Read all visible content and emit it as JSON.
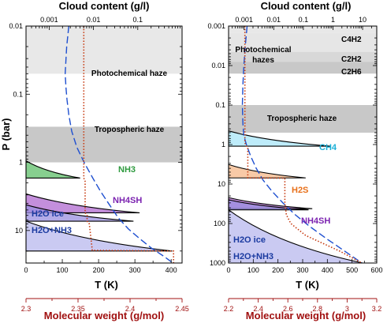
{
  "chart_data": [
    {
      "type": "line",
      "panel": "left",
      "top_axis": {
        "label": "Cloud content (g/l)",
        "log": true,
        "range": [
          0.0003,
          1
        ],
        "ticks": [
          0.001,
          0.01,
          0.1
        ],
        "tick_labels": [
          "0.001",
          "0.01",
          "0.1"
        ]
      },
      "y_axis": {
        "label": "P (bar)",
        "log": true,
        "inverted": true,
        "range": [
          0.01,
          30
        ],
        "ticks": [
          0.01,
          0.1,
          1,
          10
        ],
        "tick_labels": [
          "0.01",
          "0.1",
          "1",
          "10"
        ]
      },
      "x_axis": {
        "label": "T (K)",
        "range": [
          0,
          430
        ],
        "ticks": [
          0,
          100,
          200,
          300,
          400
        ],
        "tick_labels": [
          "0",
          "100",
          "200",
          "300",
          "400"
        ]
      },
      "bottom_axis": {
        "label": "Molecular weight (g/mol)",
        "range": [
          2.3,
          2.45
        ],
        "ticks": [
          2.3,
          2.35,
          2.4,
          2.45
        ],
        "tick_labels": [
          "2.3",
          "2.35",
          "2.4",
          "2.45"
        ]
      },
      "haze_bands": [
        {
          "label": "Photochemical haze",
          "p_top": 0.01,
          "p_bottom": 0.05,
          "color": "#e8e8e8"
        },
        {
          "label": "Tropospheric haze",
          "p_top": 0.3,
          "p_bottom": 1.0,
          "color": "#c8c8c8"
        }
      ],
      "clouds": [
        {
          "label": "NH3",
          "base_p": 1.7,
          "top_p": 0.95,
          "max_content": 0.005,
          "fill": "#5fbf6a",
          "label_color": "#2e9a3e"
        },
        {
          "label": "NH4SH",
          "base_p": 5.5,
          "top_p": 2.9,
          "max_content": 0.11,
          "fill": "#b06ad0",
          "label_color": "#7b22b0"
        },
        {
          "label": "H2O ice",
          "base_p": 7.3,
          "top_p": 4.2,
          "max_content": 0.08,
          "fill": "#9a8fe0",
          "label_color": "#1a3aa0"
        },
        {
          "label": "H2O+NH3",
          "base_p": 20,
          "top_p": 7.3,
          "max_content": 0.6,
          "fill": "#b8b8ee",
          "label_color": "#1a3aa0"
        }
      ],
      "temperature_profile": {
        "color": "#1e4fd0",
        "dash": "long",
        "T": [
          118,
          112,
          108,
          110,
          113,
          118,
          126,
          140,
          160,
          184,
          206,
          230,
          254,
          282,
          312,
          345,
          380,
          405
        ],
        "P": [
          0.01,
          0.02,
          0.05,
          0.08,
          0.12,
          0.2,
          0.35,
          0.6,
          1.0,
          1.7,
          2.7,
          4.2,
          6.5,
          9.5,
          13,
          18,
          24,
          30
        ]
      },
      "molecular_weight_profile": {
        "color": "#c63a10",
        "dash": "dotted",
        "mw": [
          2.3555,
          2.3555,
          2.3555,
          2.3555,
          2.3555,
          2.3568,
          2.3568,
          2.3587,
          2.3587,
          2.3608,
          2.3637,
          2.4418,
          2.4418
        ],
        "P": [
          0.01,
          0.1,
          0.5,
          1.0,
          1.7,
          1.9,
          5.5,
          6.0,
          7.3,
          8.0,
          19.5,
          20,
          30
        ]
      }
    },
    {
      "type": "line",
      "panel": "right",
      "top_axis": {
        "label": "Cloud content (g/l)",
        "log": true,
        "range": [
          0.0003,
          30
        ],
        "ticks": [
          0.001,
          0.01,
          0.1,
          1,
          10
        ],
        "tick_labels": [
          "0.001",
          "0.01",
          "0.1",
          "1",
          "10"
        ]
      },
      "y_axis": {
        "label": "",
        "log": true,
        "inverted": true,
        "range": [
          0.001,
          1000
        ],
        "ticks": [
          0.001,
          0.01,
          0.1,
          1,
          10,
          100,
          1000
        ],
        "tick_labels": [
          "0.001",
          "0.01",
          "0.1",
          "1",
          "10",
          "100",
          "1000"
        ]
      },
      "x_axis": {
        "label": "T (K)",
        "range": [
          0,
          600
        ],
        "ticks": [
          0,
          100,
          200,
          300,
          400,
          500,
          600
        ],
        "tick_labels": [
          "0",
          "100",
          "200",
          "300",
          "400",
          "500",
          "600"
        ]
      },
      "bottom_axis": {
        "label": "Molecular weight (g/mol)",
        "range": [
          2.2,
          3.2
        ],
        "ticks": [
          2.2,
          2.4,
          2.6,
          2.8,
          3,
          3.2
        ],
        "tick_labels": [
          "2.2",
          "2.4",
          "2.6",
          "2.8",
          "3",
          "3.2"
        ]
      },
      "haze_bands": [
        {
          "label": "Photochemical hazes",
          "p_top": 0.001,
          "p_bottom": 0.0015,
          "color": "#e8e8e8"
        },
        {
          "label": "C4H2",
          "p_top": 0.0015,
          "p_bottom": 0.0045,
          "color": "#e6e6e6"
        },
        {
          "label": "C2H2",
          "p_top": 0.0045,
          "p_bottom": 0.008,
          "color": "#d8d8d8"
        },
        {
          "label": "C2H6",
          "p_top": 0.008,
          "p_bottom": 0.016,
          "color": "#c8c8c8"
        },
        {
          "label": "Tropospheric haze",
          "p_top": 0.1,
          "p_bottom": 0.5,
          "color": "#c8c8c8"
        }
      ],
      "band_text": {
        "title": "Photochemical",
        "title2": "hazes",
        "c4h2": "C4H2",
        "c2h2": "C2H2",
        "c2h6": "C2H6",
        "trop": "Tropospheric haze"
      },
      "clouds": [
        {
          "label": "CH4",
          "base_p": 1.1,
          "top_p": 0.45,
          "max_content": 0.8,
          "fill": "#a8e6f8",
          "label_color": "#1ab0d8"
        },
        {
          "label": "H2S",
          "base_p": 7.0,
          "top_p": 3.2,
          "max_content": 0.12,
          "fill": "#f6b88a",
          "label_color": "#e8701a"
        },
        {
          "label": "NH4SH",
          "base_p": 42,
          "top_p": 22,
          "max_content": 0.2,
          "fill": "#b06ad0",
          "label_color": "#7b22b0"
        },
        {
          "label": "H2O ice",
          "base_p": 45,
          "top_p": 25,
          "max_content": 0.15,
          "fill": "#9a8fe0",
          "label_color": "#1a3aa0"
        },
        {
          "label": "H2O+NH3",
          "base_p": 1000,
          "top_p": 45,
          "max_content": 10,
          "fill": "#b8b8ee",
          "label_color": "#1a3aa0"
        }
      ],
      "temperature_profile": {
        "color": "#1e4fd0",
        "dash": "long",
        "T": [
          75,
          68,
          62,
          58,
          56,
          58,
          62,
          72,
          90,
          112,
          140,
          175,
          220,
          270,
          330,
          400,
          470,
          540
        ],
        "P": [
          0.001,
          0.003,
          0.01,
          0.03,
          0.1,
          0.3,
          0.6,
          1.0,
          2.0,
          4.0,
          8.0,
          15,
          30,
          60,
          120,
          250,
          500,
          1000
        ]
      },
      "molecular_weight_profile": {
        "color": "#c63a10",
        "dash": "dotted",
        "mw": [
          2.31,
          2.31,
          2.31,
          2.31,
          2.32,
          2.33,
          2.33,
          2.58,
          2.58,
          2.59,
          2.62,
          2.72,
          2.95,
          3.1
        ],
        "P": [
          0.001,
          0.1,
          0.5,
          0.9,
          1.1,
          1.2,
          7.0,
          7.1,
          30,
          60,
          100,
          200,
          500,
          1000
        ]
      }
    }
  ]
}
